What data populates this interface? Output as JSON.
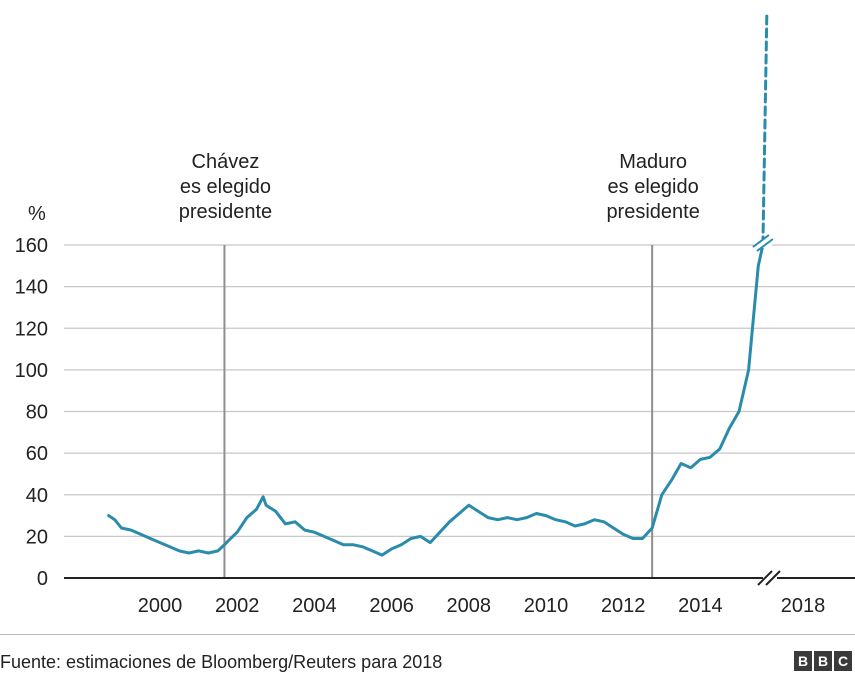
{
  "chart_data": {
    "type": "line",
    "title": "",
    "ylabel": "%",
    "xlabel": "",
    "ylim": [
      0,
      160
    ],
    "yticks": [
      "0",
      "20",
      "40",
      "60",
      "80",
      "100",
      "120",
      "140",
      "160"
    ],
    "xticks": [
      "2000",
      "2002",
      "2004",
      "2006",
      "2008",
      "2010",
      "2012",
      "2014",
      "2018"
    ],
    "axis_break_between": [
      "2014",
      "2018"
    ],
    "grid": true,
    "series": [
      {
        "color": "#2a8bab",
        "x": [
          1998.67,
          1998.83,
          1999.0,
          1999.25,
          1999.5,
          1999.75,
          2000.0,
          2000.25,
          2000.5,
          2000.75,
          2001.0,
          2001.25,
          2001.5,
          2001.67,
          2001.83,
          2002.0,
          2002.25,
          2002.5,
          2002.67,
          2002.75,
          2002.83,
          2003.0,
          2003.25,
          2003.5,
          2003.75,
          2004.0,
          2004.25,
          2004.5,
          2004.75,
          2005.0,
          2005.25,
          2005.5,
          2005.75,
          2006.0,
          2006.25,
          2006.5,
          2006.75,
          2007.0,
          2007.25,
          2007.5,
          2007.75,
          2008.0,
          2008.25,
          2008.5,
          2008.75,
          2009.0,
          2009.25,
          2009.5,
          2009.75,
          2010.0,
          2010.25,
          2010.5,
          2010.75,
          2011.0,
          2011.25,
          2011.5,
          2011.75,
          2012.0,
          2012.25,
          2012.5,
          2012.75,
          2013.0,
          2013.25,
          2013.5,
          2013.75,
          2014.0,
          2014.25,
          2014.5,
          2014.75,
          2015.0,
          2015.25,
          2015.4,
          2015.5,
          2015.62
        ],
        "values": [
          30,
          28,
          24,
          23,
          21,
          19,
          17,
          15,
          13,
          12,
          13,
          12,
          13,
          16,
          19,
          22,
          29,
          33,
          39,
          35,
          34,
          32,
          26,
          27,
          23,
          22,
          20,
          18,
          16,
          16,
          15,
          13,
          11,
          14,
          16,
          19,
          20,
          17,
          22,
          27,
          31,
          35,
          32,
          29,
          28,
          29,
          28,
          29,
          31,
          30,
          28,
          27,
          25,
          26,
          28,
          27,
          24,
          21,
          19,
          19,
          24,
          40,
          47,
          55,
          53,
          57,
          58,
          62,
          72,
          80,
          100,
          130,
          150,
          160
        ]
      },
      {
        "style": "dashed",
        "color": "#2a8bab",
        "x": [
          2015.62,
          2015.72
        ],
        "values": [
          160,
          270
        ]
      }
    ],
    "annotations": [
      {
        "text_lines": [
          "Chávez",
          "es elegido",
          "presidente"
        ],
        "x": 2001.67
      },
      {
        "text_lines": [
          "Maduro",
          "es elegido",
          "presidente"
        ],
        "x": 2012.75
      }
    ],
    "source": "Fuente: estimaciones de Bloomberg/Reuters para 2018"
  },
  "logo": [
    "B",
    "B",
    "C"
  ]
}
